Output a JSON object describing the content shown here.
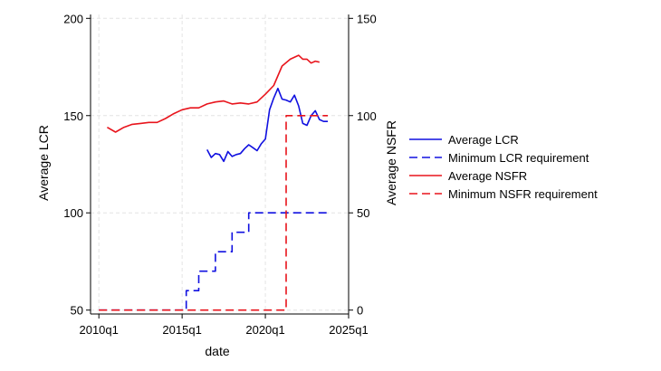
{
  "chart_data": {
    "type": "line",
    "xlabel": "date",
    "ylabel_left": "Average LCR",
    "ylabel_right": "Average NSFR",
    "xlim": [
      "2009q3",
      "2025q1"
    ],
    "ylim_left": [
      48,
      202
    ],
    "ylim_right": [
      -2,
      152
    ],
    "xticks": [
      "2010q1",
      "2015q1",
      "2020q1",
      "2025q1"
    ],
    "yticks_left": [
      "50",
      "100",
      "150",
      "200"
    ],
    "yticks_right": [
      "0",
      "50",
      "100",
      "150"
    ],
    "grid": true,
    "legend_position": "right",
    "series": [
      {
        "name": "Average LCR",
        "axis": "left",
        "color": "#1010e0",
        "dash": "solid",
        "points": [
          [
            "2016q3",
            132.5
          ],
          [
            "2016q4",
            128.5
          ],
          [
            "2017q1",
            130.5
          ],
          [
            "2017q2",
            130
          ],
          [
            "2017q3",
            126.5
          ],
          [
            "2017q4",
            131.5
          ],
          [
            "2018q1",
            129
          ],
          [
            "2018q2",
            130
          ],
          [
            "2018q3",
            130.5
          ],
          [
            "2018q4",
            133
          ],
          [
            "2019q1",
            135
          ],
          [
            "2019q2",
            133.5
          ],
          [
            "2019q3",
            132
          ],
          [
            "2019q4",
            135.5
          ],
          [
            "2020q1",
            138
          ],
          [
            "2020q2",
            153
          ],
          [
            "2020q3",
            159
          ],
          [
            "2020q4",
            164
          ],
          [
            "2021q1",
            158.5
          ],
          [
            "2021q2",
            158
          ],
          [
            "2021q3",
            157
          ],
          [
            "2021q4",
            160.5
          ],
          [
            "2022q1",
            155
          ],
          [
            "2022q2",
            146
          ],
          [
            "2022q3",
            145
          ],
          [
            "2022q4",
            150
          ],
          [
            "2023q1",
            152.5
          ],
          [
            "2023q2",
            148
          ],
          [
            "2023q3",
            147
          ],
          [
            "2023q4",
            147
          ]
        ]
      },
      {
        "name": "Minimum LCR requirement",
        "axis": "left",
        "color": "#1010e0",
        "dash": "dashed",
        "step": true,
        "points": [
          [
            "2010q1",
            50
          ],
          [
            "2015q1",
            50
          ],
          [
            "2015q2",
            60
          ],
          [
            "2016q1",
            70
          ],
          [
            "2017q1",
            80
          ],
          [
            "2018q1",
            90
          ],
          [
            "2019q1",
            100
          ],
          [
            "2023q4",
            100
          ]
        ]
      },
      {
        "name": "Average NSFR",
        "axis": "right",
        "color": "#e8141c",
        "dash": "solid",
        "points": [
          [
            "2010q3",
            94
          ],
          [
            "2011q1",
            91.5
          ],
          [
            "2011q3",
            94
          ],
          [
            "2012q1",
            95.5
          ],
          [
            "2012q3",
            96
          ],
          [
            "2013q1",
            96.5
          ],
          [
            "2013q3",
            96.5
          ],
          [
            "2014q1",
            98.5
          ],
          [
            "2014q3",
            101
          ],
          [
            "2015q1",
            103
          ],
          [
            "2015q3",
            104
          ],
          [
            "2016q1",
            104
          ],
          [
            "2016q3",
            106
          ],
          [
            "2017q1",
            107
          ],
          [
            "2017q3",
            107.5
          ],
          [
            "2018q1",
            106
          ],
          [
            "2018q3",
            106.5
          ],
          [
            "2019q1",
            106
          ],
          [
            "2019q3",
            107
          ],
          [
            "2020q1",
            111
          ],
          [
            "2020q3",
            115.5
          ],
          [
            "2021q1",
            125.5
          ],
          [
            "2021q3",
            129
          ],
          [
            "2022q1",
            131
          ],
          [
            "2022q2",
            129
          ],
          [
            "2022q3",
            129
          ],
          [
            "2022q4",
            127
          ],
          [
            "2023q1",
            128
          ],
          [
            "2023q2",
            127.5
          ]
        ]
      },
      {
        "name": "Minimum NSFR requirement",
        "axis": "right",
        "color": "#e8141c",
        "dash": "dashed",
        "step": true,
        "points": [
          [
            "2010q1",
            0
          ],
          [
            "2020q4",
            0
          ],
          [
            "2021q2",
            100
          ],
          [
            "2023q4",
            100
          ]
        ]
      }
    ]
  }
}
